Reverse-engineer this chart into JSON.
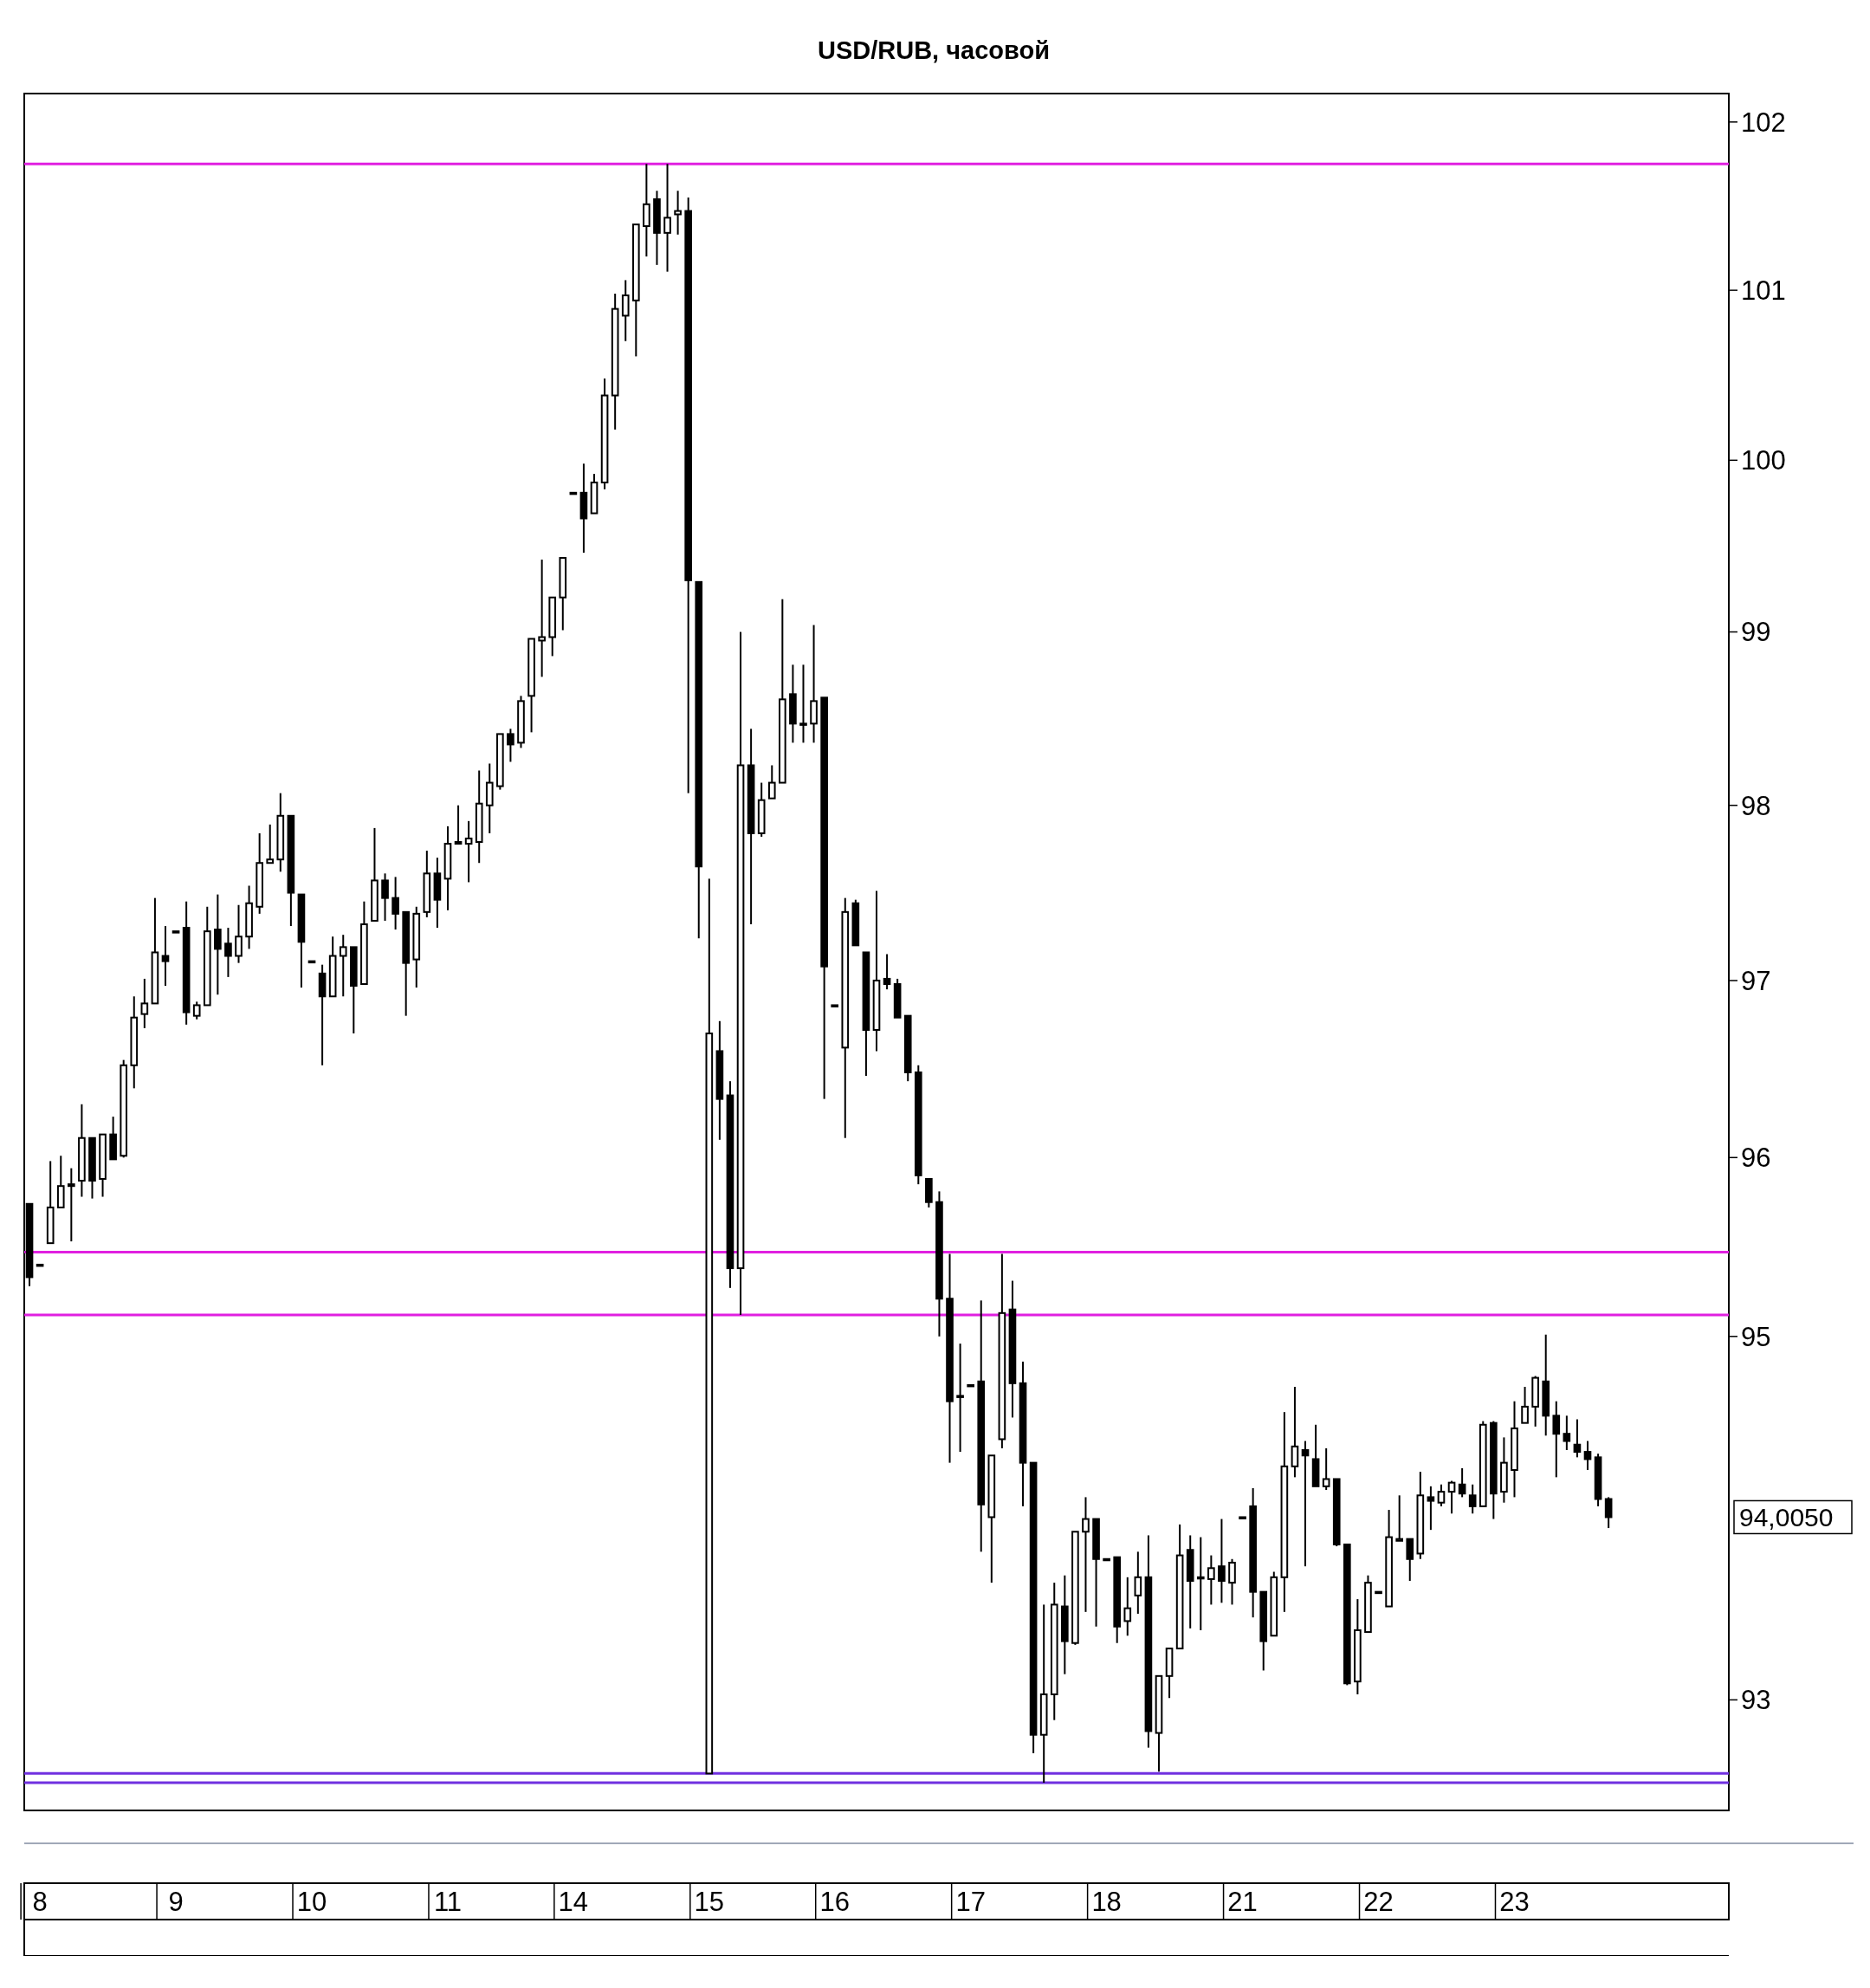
{
  "chart_data": {
    "type": "candlestick",
    "title": "USD/RUB, часовой",
    "log": true,
    "ylim": [
      92.4,
      102.17
    ],
    "yticks": [
      93,
      95,
      96,
      97,
      98,
      99,
      100,
      101,
      102
    ],
    "categories": [
      null,
      "8",
      null,
      null,
      null,
      null,
      null,
      null,
      null,
      null,
      null,
      null,
      null,
      null,
      "9",
      null,
      null,
      null,
      null,
      null,
      null,
      null,
      null,
      null,
      null,
      null,
      null,
      "10",
      null,
      null,
      null,
      null,
      null,
      null,
      null,
      null,
      null,
      null,
      null,
      null,
      "11",
      null,
      null,
      null,
      null,
      null,
      null,
      null,
      null,
      null,
      null,
      null,
      "14",
      null,
      null,
      null,
      null,
      null,
      null,
      null,
      null,
      null,
      null,
      null,
      null,
      "15",
      null,
      null,
      null,
      null,
      null,
      null,
      null,
      null,
      null,
      null,
      null,
      "16",
      null,
      null,
      null,
      null,
      null,
      null,
      null,
      null,
      null,
      null,
      null,
      null,
      "17",
      null,
      null,
      null,
      null,
      null,
      null,
      null,
      null,
      null,
      null,
      null,
      null,
      "18",
      null,
      null,
      null,
      null,
      null,
      null,
      null,
      null,
      null,
      null,
      null,
      null,
      "21",
      null,
      null,
      null,
      null,
      null,
      null,
      null,
      null,
      null,
      null,
      null,
      null,
      "22",
      null,
      null,
      null,
      null,
      null,
      null,
      null,
      null,
      null,
      null,
      null,
      null,
      "23",
      null,
      null,
      null,
      null,
      null,
      null,
      null,
      null,
      null
    ],
    "ohlc": [
      [
        95.74,
        95.74,
        95.28,
        95.33
      ],
      [
        95.4,
        95.4,
        95.4,
        95.4
      ],
      [
        95.52,
        95.98,
        95.52,
        95.72
      ],
      [
        95.72,
        96.01,
        95.72,
        95.84
      ],
      [
        95.85,
        95.94,
        95.53,
        95.84
      ],
      [
        95.87,
        96.3,
        95.78,
        96.11
      ],
      [
        96.11,
        96.11,
        95.77,
        95.87
      ],
      [
        95.88,
        96.13,
        95.78,
        96.13
      ],
      [
        96.13,
        96.23,
        95.99,
        95.99
      ],
      [
        96.01,
        96.55,
        96.0,
        96.52
      ],
      [
        96.52,
        96.91,
        96.39,
        96.79
      ],
      [
        96.81,
        97.01,
        96.73,
        96.87
      ],
      [
        96.87,
        97.47,
        96.87,
        97.16
      ],
      [
        97.14,
        97.31,
        96.97,
        97.11
      ],
      [
        97.28,
        97.28,
        97.28,
        97.28
      ],
      [
        97.3,
        97.45,
        96.75,
        96.82
      ],
      [
        96.8,
        96.88,
        96.78,
        96.86
      ],
      [
        96.86,
        97.42,
        96.86,
        97.28
      ],
      [
        97.29,
        97.49,
        96.92,
        97.18
      ],
      [
        97.21,
        97.3,
        97.02,
        97.14
      ],
      [
        97.14,
        97.43,
        97.1,
        97.25
      ],
      [
        97.25,
        97.54,
        97.18,
        97.44
      ],
      [
        97.42,
        97.84,
        97.38,
        97.67
      ],
      [
        97.67,
        97.89,
        97.67,
        97.69
      ],
      [
        97.69,
        98.07,
        97.62,
        97.94
      ],
      [
        97.94,
        97.94,
        97.31,
        97.5
      ],
      [
        97.49,
        97.49,
        96.96,
        97.22
      ],
      [
        97.11,
        97.11,
        97.11,
        97.11
      ],
      [
        97.04,
        97.09,
        96.52,
        96.91
      ],
      [
        96.91,
        97.25,
        96.91,
        97.14
      ],
      [
        97.14,
        97.26,
        96.91,
        97.19
      ],
      [
        97.19,
        97.19,
        96.7,
        96.97
      ],
      [
        96.98,
        97.45,
        96.98,
        97.32
      ],
      [
        97.34,
        97.87,
        97.34,
        97.57
      ],
      [
        97.57,
        97.61,
        97.34,
        97.47
      ],
      [
        97.47,
        97.59,
        97.29,
        97.38
      ],
      [
        97.39,
        97.39,
        96.8,
        97.1
      ],
      [
        97.12,
        97.42,
        96.96,
        97.38
      ],
      [
        97.39,
        97.74,
        97.36,
        97.61
      ],
      [
        97.61,
        97.7,
        97.3,
        97.46
      ],
      [
        97.58,
        97.88,
        97.4,
        97.78
      ],
      [
        97.78,
        98.0,
        97.78,
        97.79
      ],
      [
        97.78,
        97.91,
        97.56,
        97.81
      ],
      [
        97.79,
        98.2,
        97.67,
        98.01
      ],
      [
        98.0,
        98.24,
        97.84,
        98.13
      ],
      [
        98.11,
        98.41,
        98.09,
        98.41
      ],
      [
        98.41,
        98.44,
        98.25,
        98.35
      ],
      [
        98.36,
        98.63,
        98.33,
        98.6
      ],
      [
        98.63,
        98.96,
        98.42,
        98.96
      ],
      [
        98.95,
        99.42,
        98.74,
        98.97
      ],
      [
        98.97,
        99.2,
        98.86,
        99.2
      ],
      [
        99.2,
        99.43,
        99.01,
        99.43
      ],
      [
        99.81,
        99.81,
        99.81,
        99.81
      ],
      [
        99.81,
        99.98,
        99.46,
        99.66
      ],
      [
        99.69,
        99.92,
        99.69,
        99.87
      ],
      [
        99.87,
        100.48,
        99.83,
        100.38
      ],
      [
        100.38,
        100.98,
        100.18,
        100.89
      ],
      [
        100.85,
        101.06,
        100.7,
        100.97
      ],
      [
        100.94,
        101.39,
        100.61,
        101.39
      ],
      [
        101.38,
        101.75,
        101.2,
        101.51
      ],
      [
        101.54,
        101.59,
        101.15,
        101.34
      ],
      [
        101.34,
        101.75,
        101.11,
        101.43
      ],
      [
        101.45,
        101.59,
        101.33,
        101.47
      ],
      [
        101.47,
        101.55,
        98.07,
        99.3
      ],
      [
        99.29,
        99.29,
        97.24,
        97.65
      ],
      [
        92.6,
        97.58,
        92.6,
        96.7
      ],
      [
        96.6,
        96.77,
        96.1,
        96.33
      ],
      [
        96.35,
        96.43,
        95.27,
        95.38
      ],
      [
        95.38,
        99.0,
        95.12,
        98.23
      ],
      [
        98.23,
        98.44,
        97.32,
        97.84
      ],
      [
        97.84,
        98.13,
        97.82,
        98.03
      ],
      [
        98.04,
        98.23,
        98.04,
        98.13
      ],
      [
        98.13,
        99.19,
        98.13,
        98.61
      ],
      [
        98.64,
        98.81,
        98.36,
        98.47
      ],
      [
        98.47,
        98.81,
        98.36,
        98.47
      ],
      [
        98.47,
        99.04,
        98.36,
        98.6
      ],
      [
        98.62,
        98.62,
        96.33,
        97.08
      ],
      [
        96.86,
        96.86,
        96.86,
        96.86
      ],
      [
        96.62,
        97.47,
        96.11,
        97.39
      ],
      [
        97.44,
        97.46,
        97.2,
        97.2
      ],
      [
        97.16,
        97.16,
        96.46,
        96.72
      ],
      [
        96.72,
        97.51,
        96.6,
        97.0
      ],
      [
        97.01,
        97.15,
        96.95,
        96.98
      ],
      [
        96.98,
        97.01,
        96.79,
        96.79
      ],
      [
        96.8,
        96.8,
        96.43,
        96.48
      ],
      [
        96.48,
        96.52,
        95.85,
        95.9
      ],
      [
        95.88,
        95.88,
        95.72,
        95.75
      ],
      [
        95.75,
        95.81,
        95.0,
        95.21
      ],
      [
        95.21,
        95.46,
        94.3,
        94.64
      ],
      [
        94.67,
        94.96,
        94.36,
        94.67
      ],
      [
        94.73,
        94.73,
        94.73,
        94.73
      ],
      [
        94.75,
        95.2,
        93.81,
        94.07
      ],
      [
        94.0,
        94.34,
        93.64,
        94.34
      ],
      [
        94.43,
        95.46,
        94.38,
        95.13
      ],
      [
        95.15,
        95.31,
        94.55,
        94.74
      ],
      [
        94.74,
        94.86,
        94.06,
        94.3
      ],
      [
        94.3,
        94.3,
        92.71,
        92.81
      ],
      [
        92.81,
        93.52,
        92.55,
        93.03
      ],
      [
        93.03,
        93.64,
        92.89,
        93.52
      ],
      [
        93.51,
        93.68,
        93.14,
        93.32
      ],
      [
        93.31,
        93.92,
        93.3,
        93.92
      ],
      [
        93.92,
        94.11,
        93.48,
        93.99
      ],
      [
        93.99,
        93.99,
        93.4,
        93.77
      ],
      [
        93.77,
        93.77,
        93.77,
        93.77
      ],
      [
        93.78,
        93.78,
        93.31,
        93.4
      ],
      [
        93.43,
        93.67,
        93.35,
        93.5
      ],
      [
        93.57,
        93.81,
        93.47,
        93.67
      ],
      [
        93.67,
        93.9,
        92.74,
        92.83
      ],
      [
        92.82,
        93.13,
        92.61,
        93.13
      ],
      [
        93.13,
        93.28,
        93.01,
        93.28
      ],
      [
        93.28,
        93.96,
        93.28,
        93.79
      ],
      [
        93.82,
        93.9,
        93.39,
        93.65
      ],
      [
        93.67,
        93.89,
        93.38,
        93.67
      ],
      [
        93.66,
        93.79,
        93.52,
        93.72
      ],
      [
        93.73,
        93.99,
        93.53,
        93.65
      ],
      [
        93.64,
        93.77,
        93.52,
        93.75
      ],
      [
        94.0,
        94.0,
        94.0,
        94.0
      ],
      [
        94.06,
        94.16,
        93.45,
        93.59
      ],
      [
        93.59,
        93.59,
        93.16,
        93.32
      ],
      [
        93.35,
        93.7,
        93.35,
        93.67
      ],
      [
        93.67,
        94.58,
        93.48,
        94.28
      ],
      [
        94.28,
        94.72,
        94.22,
        94.39
      ],
      [
        94.37,
        94.42,
        93.73,
        94.34
      ],
      [
        94.32,
        94.51,
        94.17,
        94.17
      ],
      [
        94.17,
        94.38,
        94.15,
        94.21
      ],
      [
        94.21,
        94.21,
        93.84,
        93.85
      ],
      [
        93.85,
        93.85,
        93.08,
        93.09
      ],
      [
        93.1,
        93.55,
        93.03,
        93.38
      ],
      [
        93.37,
        93.68,
        93.37,
        93.64
      ],
      [
        93.59,
        93.59,
        93.59,
        93.59
      ],
      [
        93.51,
        94.04,
        93.51,
        93.89
      ],
      [
        93.87,
        94.12,
        93.87,
        93.88
      ],
      [
        93.88,
        93.88,
        93.65,
        93.77
      ],
      [
        93.8,
        94.25,
        93.77,
        94.12
      ],
      [
        94.11,
        94.17,
        93.93,
        94.09
      ],
      [
        94.08,
        94.18,
        94.06,
        94.14
      ],
      [
        94.14,
        94.2,
        94.02,
        94.19
      ],
      [
        94.18,
        94.27,
        94.11,
        94.13
      ],
      [
        94.12,
        94.18,
        94.02,
        94.06
      ],
      [
        94.06,
        94.53,
        94.06,
        94.51
      ],
      [
        94.52,
        94.53,
        93.99,
        94.13
      ],
      [
        94.14,
        94.44,
        94.08,
        94.3
      ],
      [
        94.26,
        94.64,
        94.11,
        94.49
      ],
      [
        94.52,
        94.72,
        94.52,
        94.61
      ],
      [
        94.61,
        94.78,
        94.5,
        94.77
      ],
      [
        94.75,
        95.01,
        94.45,
        94.56
      ],
      [
        94.56,
        94.64,
        94.22,
        94.46
      ],
      [
        94.46,
        94.56,
        94.37,
        94.42
      ],
      [
        94.4,
        94.54,
        94.33,
        94.36
      ],
      [
        94.36,
        94.42,
        94.26,
        94.32
      ],
      [
        94.33,
        94.35,
        94.06,
        94.1
      ],
      [
        94.1,
        94.11,
        93.94,
        94.0
      ]
    ],
    "ref_lines": [
      {
        "axis": "y",
        "value": 101.75,
        "color": "#e020e0"
      },
      {
        "axis": "y",
        "value": 95.47,
        "color": "#e020e0"
      },
      {
        "axis": "y",
        "value": 95.12,
        "color": "#e020e0"
      },
      {
        "axis": "y",
        "value": 92.6,
        "color": "#7030e0"
      },
      {
        "axis": "y",
        "value": 92.55,
        "color": "#7030e0"
      }
    ],
    "annotations": [
      "94,0050"
    ]
  }
}
